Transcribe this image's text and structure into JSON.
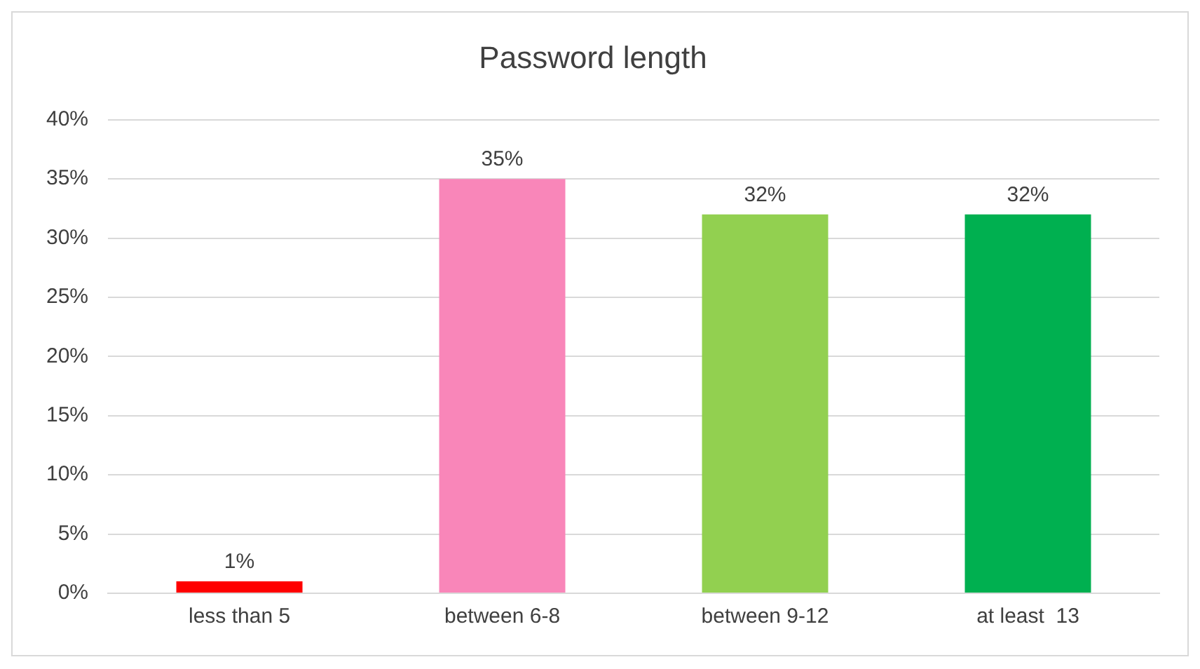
{
  "chart_data": {
    "type": "bar",
    "title": "Password length",
    "categories": [
      "less than 5",
      "between 6-8",
      "between 9-12",
      "at least  13"
    ],
    "values": [
      1,
      35,
      32,
      32
    ],
    "colors": [
      "#ff0000",
      "#f986b9",
      "#92d050",
      "#00b050"
    ],
    "value_labels": [
      "1%",
      "35%",
      "32%",
      "32%"
    ],
    "ylim": [
      0,
      40
    ],
    "yticks": [
      {
        "value": 0,
        "label": "0%"
      },
      {
        "value": 5,
        "label": "5%"
      },
      {
        "value": 10,
        "label": "10%"
      },
      {
        "value": 15,
        "label": "15%"
      },
      {
        "value": 20,
        "label": "20%"
      },
      {
        "value": 25,
        "label": "25%"
      },
      {
        "value": 30,
        "label": "30%"
      },
      {
        "value": 35,
        "label": "35%"
      },
      {
        "value": 40,
        "label": "40%"
      }
    ],
    "grid": "y",
    "legend": false
  }
}
